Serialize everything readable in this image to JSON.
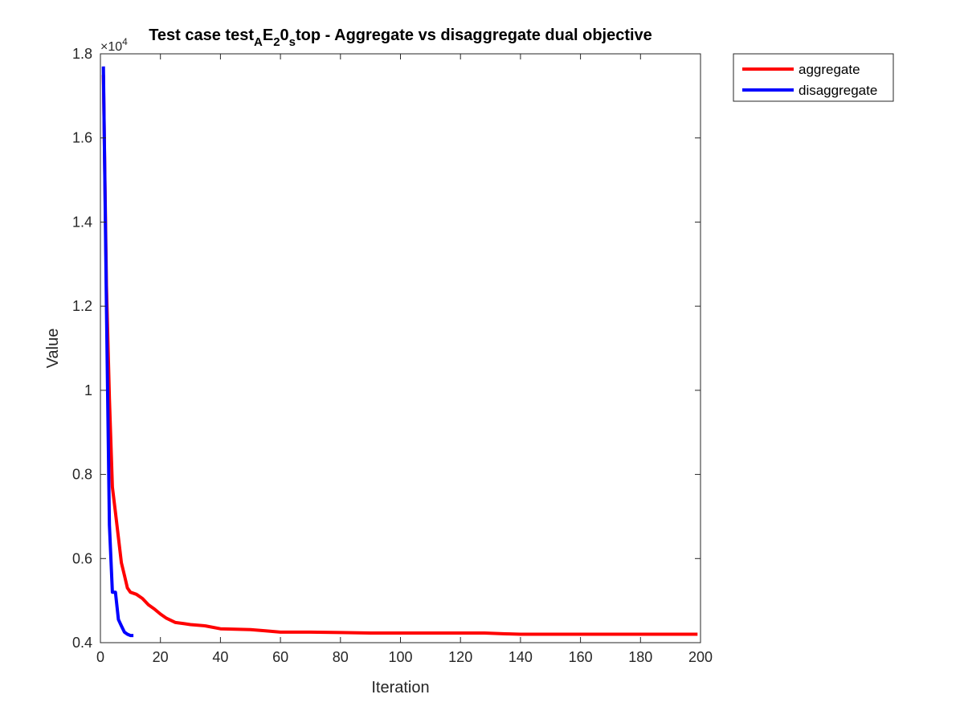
{
  "chart_data": {
    "type": "line",
    "title": {
      "segments": [
        {
          "text": "Test case test",
          "shift": "base"
        },
        {
          "text": "A",
          "shift": "sub"
        },
        {
          "text": "E",
          "shift": "base"
        },
        {
          "text": "2",
          "shift": "sub"
        },
        {
          "text": "0",
          "shift": "base"
        },
        {
          "text": "s",
          "shift": "sub"
        },
        {
          "text": "top - Aggregate vs disaggregate dual objective",
          "shift": "base"
        }
      ]
    },
    "xlabel": "Iteration",
    "ylabel": "Value",
    "y_exponent_label": "×10",
    "y_exponent_power": "4",
    "xlim": [
      0,
      200
    ],
    "ylim": [
      0.4,
      1.8
    ],
    "y_scale_factor": "1e4",
    "xticks": [
      "0",
      "20",
      "40",
      "60",
      "80",
      "100",
      "120",
      "140",
      "160",
      "180",
      "200"
    ],
    "yticks": [
      "0.4",
      "0.6",
      "0.8",
      "1",
      "1.2",
      "1.4",
      "1.6",
      "1.8"
    ],
    "grid": false,
    "legend_position": "outside-top-right",
    "series": [
      {
        "name": "aggregate",
        "color": "#ff0000",
        "x": [
          1,
          2,
          3,
          4,
          5,
          6,
          7,
          8,
          9,
          10,
          12,
          14,
          16,
          18,
          20,
          22,
          25,
          28,
          30,
          35,
          40,
          45,
          50,
          55,
          60,
          70,
          80,
          90,
          100,
          110,
          120,
          128,
          135,
          140,
          150,
          160,
          170,
          180,
          190,
          199
        ],
        "y": [
          1.75,
          1.25,
          0.98,
          0.77,
          0.71,
          0.65,
          0.59,
          0.56,
          0.53,
          0.52,
          0.515,
          0.505,
          0.49,
          0.48,
          0.468,
          0.458,
          0.448,
          0.445,
          0.443,
          0.44,
          0.433,
          0.432,
          0.431,
          0.428,
          0.425,
          0.425,
          0.424,
          0.423,
          0.423,
          0.423,
          0.423,
          0.423,
          0.421,
          0.42,
          0.42,
          0.42,
          0.42,
          0.42,
          0.42,
          0.42
        ]
      },
      {
        "name": "disaggregate",
        "color": "#0000ff",
        "x": [
          1,
          2,
          3,
          4,
          5,
          6,
          7,
          8,
          9,
          10,
          11
        ],
        "y": [
          1.77,
          1.2,
          0.68,
          0.52,
          0.52,
          0.455,
          0.44,
          0.425,
          0.42,
          0.417,
          0.417
        ]
      }
    ]
  }
}
